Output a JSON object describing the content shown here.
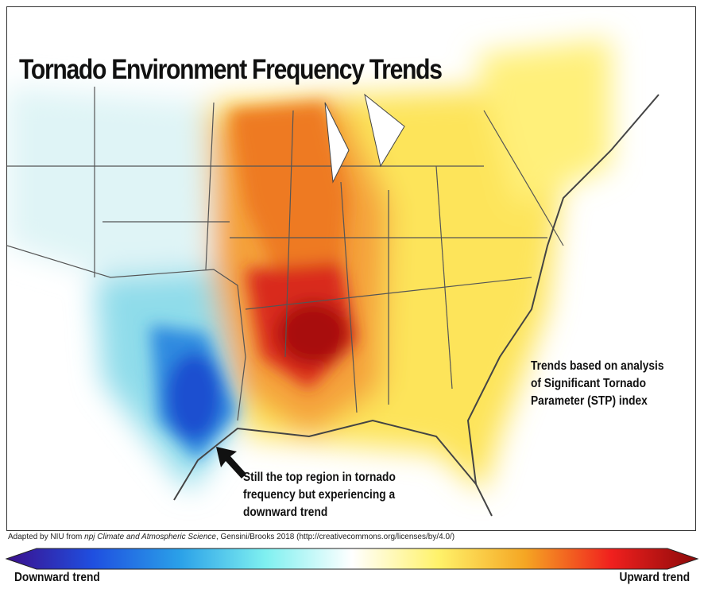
{
  "title": "Tornado Environment Frequency Trends",
  "annotation_right": [
    "Trends based on analysis",
    "of Significant Tornado",
    "Parameter (STP) index"
  ],
  "annotation_arrow": [
    "Still the top region in tornado",
    "frequency but experiencing a",
    "downward trend"
  ],
  "credit": {
    "prefix": "Adapted by NIU from ",
    "journal": "npj Climate and Atmospheric Science",
    "suffix": ", Gensini/Brooks 2018 (http://creativecommons.org/licenses/by/4.0/)"
  },
  "legend": {
    "low_label": "Downward trend",
    "high_label": "Upward trend",
    "colors": [
      "#3b0f8c",
      "#1f4fe0",
      "#2aa0e8",
      "#7ff0f0",
      "#ffffff",
      "#fff26a",
      "#f5a623",
      "#f0201e",
      "#8c0a0a"
    ]
  }
}
